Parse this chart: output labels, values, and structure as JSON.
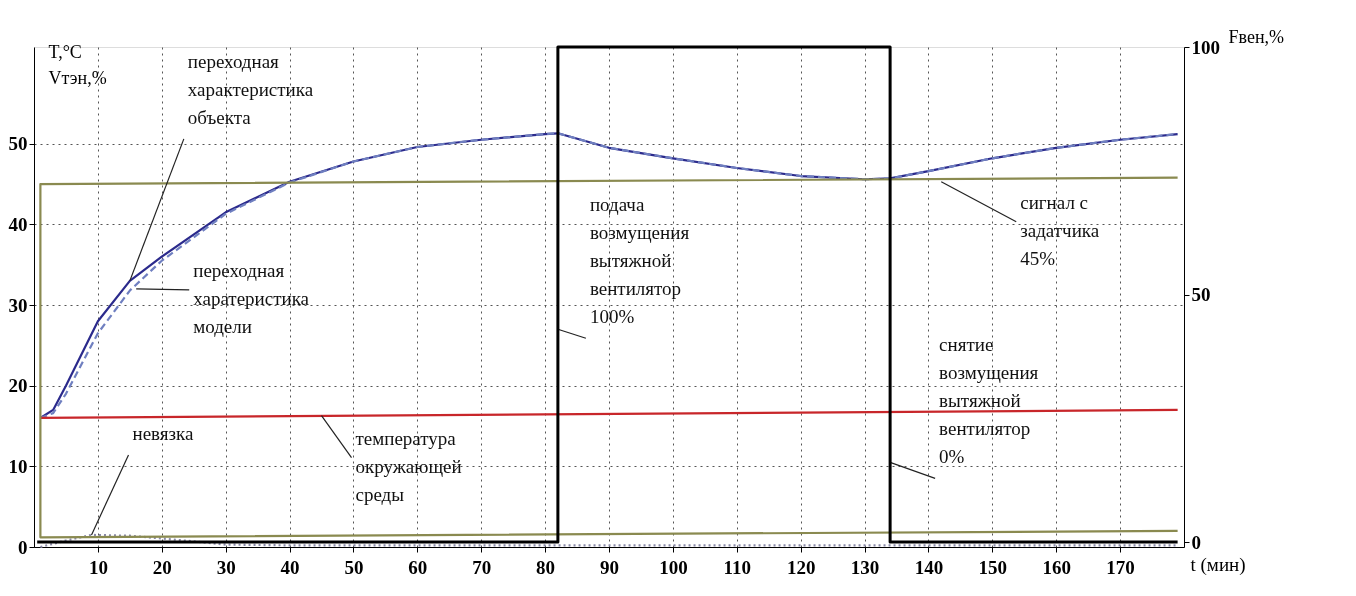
{
  "chart_data": {
    "type": "line",
    "xlabel": "t (мин)",
    "ylabel": "T,°C\nVтэн,%",
    "y2label": "Fвен,%",
    "xlim": [
      0,
      180
    ],
    "xticks": [
      10,
      20,
      30,
      40,
      50,
      60,
      70,
      80,
      90,
      100,
      110,
      120,
      130,
      140,
      150,
      160,
      170
    ],
    "ylim": [
      0,
      62
    ],
    "yticks": [
      0,
      10,
      20,
      30,
      40,
      50
    ],
    "y2lim": [
      -1,
      100
    ],
    "y2ticks": [
      0,
      50,
      100
    ],
    "grid": true,
    "series": [
      {
        "color": "#2b2a8c",
        "line_style": "solid",
        "x": [
          1,
          3,
          5,
          10,
          15,
          20,
          30,
          40,
          50,
          60,
          70,
          80,
          82,
          90,
          100,
          110,
          120,
          130,
          134,
          140,
          150,
          160,
          170,
          179
        ],
        "values": [
          16,
          17,
          20,
          28,
          33,
          36,
          41.5,
          45.3,
          47.8,
          49.6,
          50.5,
          51.2,
          51.3,
          49.5,
          48.2,
          47,
          46,
          45.6,
          45.7,
          46.6,
          48.2,
          49.5,
          50.5,
          51.2
        ]
      },
      {
        "color": "#6f7fc0",
        "line_style": "dashed",
        "x": [
          1,
          3,
          5,
          10,
          15,
          20,
          30,
          40,
          50,
          60,
          70,
          80,
          82,
          90,
          100,
          110,
          120,
          130,
          134,
          140,
          150,
          160,
          170,
          179
        ],
        "values": [
          16,
          16.6,
          19,
          26.5,
          31.8,
          35.5,
          41.3,
          45.2,
          47.8,
          49.6,
          50.5,
          51.2,
          51.3,
          49.5,
          48.2,
          47,
          46,
          45.6,
          45.7,
          46.6,
          48.2,
          49.5,
          50.5,
          51.2
        ]
      },
      {
        "color": "#8a8aa8",
        "line_style": "dotted",
        "x": [
          1,
          5,
          9,
          15,
          25,
          30,
          40,
          80,
          179
        ],
        "values": [
          0,
          0.8,
          1.5,
          1.4,
          0.7,
          0.3,
          0.2,
          0.2,
          0.2
        ]
      },
      {
        "color": "#c8262a",
        "line_style": "solid",
        "x": [
          1,
          179
        ],
        "values": [
          16,
          17
        ]
      },
      {
        "color": "#8a8a50",
        "line_style": "solid",
        "x": [
          179,
          1,
          1,
          179
        ],
        "values": [
          2,
          1.2,
          45,
          45.8
        ]
      },
      {
        "color": "#000000",
        "line_style": "solid",
        "axis": "y2",
        "x": [
          0.5,
          82,
          82,
          134,
          134,
          179
        ],
        "values": [
          0,
          0,
          100,
          100,
          0,
          0
        ]
      }
    ],
    "annotations": [
      {
        "text": "переходная\nхарактеристика\nобъекта",
        "x": 15,
        "y": 33
      },
      {
        "text": "переходная\nхаратеристика\nмодели",
        "x": 16,
        "y": 32
      },
      {
        "text": "невязка",
        "x": 9,
        "y": 1.5
      },
      {
        "text": "температура\nокружающей\nсреды",
        "x": 45,
        "y": 16.3
      },
      {
        "text": "подача\nвозмущения\nвытяжной\nвентилятор\n100%",
        "x": 82,
        "y": 27
      },
      {
        "text": "сигнал с\nзадатчика\n45%",
        "x": 142,
        "y": 45.3
      },
      {
        "text": "снятие\nвозмущения\nвытяжной\nвентилятор\n0%",
        "x": 134,
        "y": 10.5
      }
    ]
  }
}
